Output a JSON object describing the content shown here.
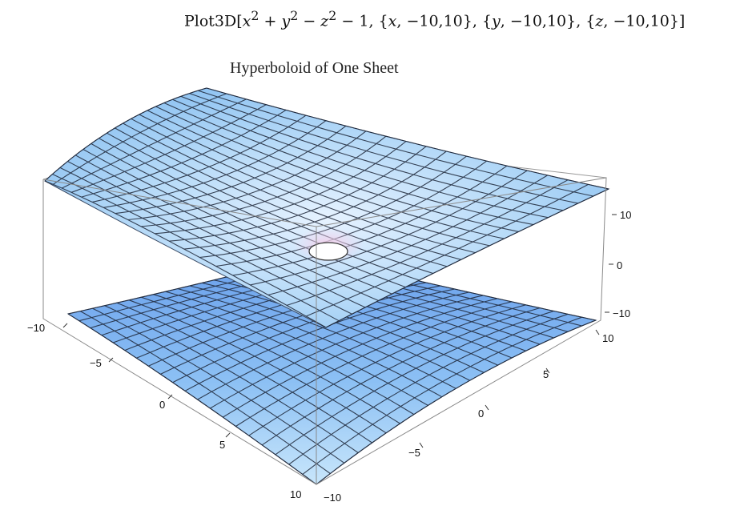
{
  "command": {
    "prefix": "Plot3D[",
    "expr_x": "x",
    "expr_y": "y",
    "expr_z": "z",
    "exp2": "2",
    "op_plus": " + ",
    "op_minus": " − ",
    "const_tail": " − 1, {",
    "range_x": ", −10,10}, {",
    "range_y": ", −10,10}, {",
    "range_z": ", −10,10}]"
  },
  "plot": {
    "title": "Hyperboloid of One Sheet",
    "surface_function": "x^2 + y^2 - z^2 - 1 = 0",
    "surface_color_light": "#cfe8ff",
    "surface_color_dark": "#4f86e6",
    "x_ticks": [
      "−10",
      "−5",
      "0",
      "5",
      "10"
    ],
    "y_ticks": [
      "−10",
      "−5",
      "0",
      "5",
      "10"
    ],
    "z_ticks": [
      "10",
      "0",
      "−10"
    ]
  }
}
